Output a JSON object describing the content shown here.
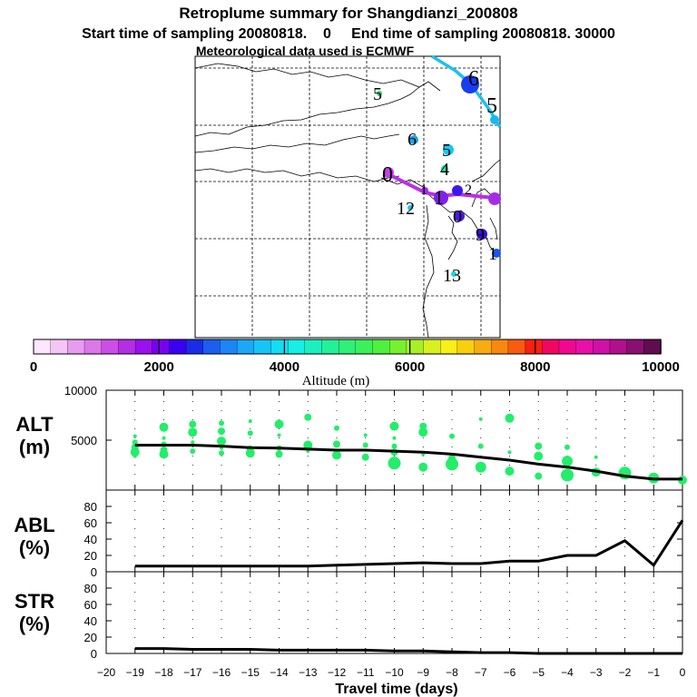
{
  "title": {
    "line1": "Retroplume summary for Shangdianzi_200808",
    "line2": "Start time of sampling 20080818.    0     End time of sampling 20080818. 30000",
    "line3": "Meteorological data used is ECMWF"
  },
  "colorbar": {
    "label": "Altitude (m)",
    "ticks": [
      "0",
      "2000",
      "4000",
      "6000",
      "8000",
      "10000"
    ],
    "colors": [
      "#ffe6ff",
      "#f4c6f8",
      "#e89cf0",
      "#dc78ea",
      "#cc4ee6",
      "#b42ee4",
      "#9a10ee",
      "#7a00f2",
      "#3a00f0",
      "#1a2ce8",
      "#1c5ef0",
      "#1c86f4",
      "#1ca8f6",
      "#18c4f6",
      "#14dcf2",
      "#16eee6",
      "#1cf0c0",
      "#24f09a",
      "#30f07a",
      "#3cf05a",
      "#50f03e",
      "#78f030",
      "#a8f028",
      "#d8f020",
      "#f8f018",
      "#f8d010",
      "#f8ac10",
      "#f88810",
      "#f85c10",
      "#f82010",
      "#f00860",
      "#f00890",
      "#e810a8",
      "#d010a8",
      "#b0108c",
      "#8a1070",
      "#600c50"
    ],
    "divider_values": [
      2000,
      4000,
      6000,
      8000
    ]
  },
  "map": {
    "labels": [
      {
        "text": "5",
        "color": "#2ad66a"
      },
      {
        "text": "6",
        "color": "#1646e0"
      },
      {
        "text": "5",
        "color": "#18b8f0"
      },
      {
        "text": "6",
        "color": "#18a8ee"
      },
      {
        "text": "5",
        "color": "#14c8f2"
      },
      {
        "text": "4",
        "color": "#24e6a0"
      },
      {
        "text": "0",
        "color": "#c840e8"
      },
      {
        "text": "1",
        "color": "#a02ce6"
      },
      {
        "text": "2",
        "color": "#3a1ae6"
      },
      {
        "text": "1",
        "color": "#8020ea"
      },
      {
        "text": "12",
        "color": "#18c8f4"
      },
      {
        "text": "0",
        "color": "#4a1ce0"
      },
      {
        "text": "9",
        "color": "#3a10d4"
      },
      {
        "text": "1",
        "color": "#1a56ee"
      },
      {
        "text": "13",
        "color": "#16d8e8"
      }
    ]
  },
  "chart_data": [
    {
      "type": "scatter",
      "panel": "ALT",
      "ylabel": "ALT\n(m)",
      "ylabel_line1": "ALT",
      "ylabel_line2": "(m)",
      "ylim": [
        0,
        10000
      ],
      "yticks": [
        "5000",
        "10000"
      ],
      "ytick_values": [
        5000,
        10000
      ],
      "xlim": [
        -20,
        0
      ],
      "point_color": "#22ee6a",
      "mean_line": {
        "x": [
          -19,
          -18,
          -17,
          -16,
          -15,
          -14,
          -13,
          -12,
          -11,
          -10,
          -9,
          -8,
          -7,
          -6,
          -5,
          -4,
          -3,
          -2,
          -1,
          0
        ],
        "y": [
          4500,
          4500,
          4500,
          4400,
          4250,
          4200,
          4100,
          4000,
          4000,
          3900,
          3800,
          3600,
          3300,
          3000,
          2600,
          2300,
          1900,
          1400,
          1100,
          1100
        ]
      },
      "points": [
        {
          "x": -19,
          "y": [
            5400,
            4800,
            4300,
            3800,
            3400
          ]
        },
        {
          "x": -18,
          "y": [
            6300,
            5200,
            4600,
            4000,
            3600
          ]
        },
        {
          "x": -17,
          "y": [
            6600,
            5800,
            4800,
            3900
          ]
        },
        {
          "x": -16,
          "y": [
            6700,
            5900,
            4900,
            4200,
            3700
          ]
        },
        {
          "x": -15,
          "y": [
            6900,
            5700,
            4100,
            3700
          ]
        },
        {
          "x": -14,
          "y": [
            6600,
            5500,
            4200,
            3600
          ]
        },
        {
          "x": -13,
          "y": [
            7300,
            4500,
            3900
          ]
        },
        {
          "x": -12,
          "y": [
            6200,
            4600,
            3500
          ]
        },
        {
          "x": -11,
          "y": [
            5500,
            4500,
            3300
          ]
        },
        {
          "x": -10,
          "y": [
            6400,
            5200,
            4400,
            3800,
            2700
          ]
        },
        {
          "x": -9,
          "y": [
            6400,
            5800,
            3600,
            2300
          ]
        },
        {
          "x": -8,
          "y": [
            5400,
            3200,
            2600
          ]
        },
        {
          "x": -7,
          "y": [
            7100,
            4400,
            2300
          ]
        },
        {
          "x": -6,
          "y": [
            7200,
            3800,
            1900
          ]
        },
        {
          "x": -5,
          "y": [
            4400,
            3400,
            1400
          ]
        },
        {
          "x": -4,
          "y": [
            4300,
            2900,
            1500
          ]
        },
        {
          "x": -3,
          "y": [
            3300,
            1800
          ]
        },
        {
          "x": -2,
          "y": [
            1700,
            1500
          ]
        },
        {
          "x": -1,
          "y": [
            1200
          ]
        },
        {
          "x": 0,
          "y": [
            1000
          ]
        }
      ]
    },
    {
      "type": "line",
      "panel": "ABL",
      "ylabel_line1": "ABL",
      "ylabel_line2": "(%)",
      "ylim": [
        0,
        100
      ],
      "yticks": [
        "0",
        "20",
        "40",
        "60",
        "80"
      ],
      "ytick_values": [
        0,
        20,
        40,
        60,
        80
      ],
      "xlim": [
        -20,
        0
      ],
      "x": [
        -19,
        -18,
        -17,
        -16,
        -15,
        -14,
        -13,
        -12,
        -11,
        -10,
        -9,
        -8,
        -7,
        -6,
        -5,
        -4,
        -3,
        -2,
        -1,
        0
      ],
      "y": [
        7,
        7,
        7,
        7,
        7,
        7,
        7,
        8,
        9,
        10,
        11,
        10,
        10,
        13,
        13,
        20,
        20,
        38,
        8,
        63
      ]
    },
    {
      "type": "line",
      "panel": "STR",
      "ylabel_line1": "STR",
      "ylabel_line2": "(%)",
      "ylim": [
        0,
        100
      ],
      "yticks": [
        "0",
        "20",
        "40",
        "60",
        "80"
      ],
      "ytick_values": [
        0,
        20,
        40,
        60,
        80
      ],
      "xlim": [
        -20,
        0
      ],
      "xlabel": "Travel time (days)",
      "xticks": [
        "−20",
        "−19",
        "−18",
        "−17",
        "−16",
        "−15",
        "−14",
        "−13",
        "−12",
        "−11",
        "−10",
        "−9",
        "−8",
        "−7",
        "−6",
        "−5",
        "−4",
        "−3",
        "−2",
        "−1",
        "0"
      ],
      "xtick_values": [
        -20,
        -19,
        -18,
        -17,
        -16,
        -15,
        -14,
        -13,
        -12,
        -11,
        -10,
        -9,
        -8,
        -7,
        -6,
        -5,
        -4,
        -3,
        -2,
        -1,
        0
      ],
      "x": [
        -19,
        -18,
        -17,
        -16,
        -15,
        -14,
        -13,
        -12,
        -11,
        -10,
        -9,
        -8,
        -7,
        -6,
        -5,
        -4,
        -3,
        -2,
        -1,
        0
      ],
      "y": [
        6,
        6,
        5,
        5,
        5,
        4,
        4,
        4,
        4,
        3,
        3,
        2,
        1,
        1,
        0,
        0,
        0,
        0,
        0,
        0
      ]
    }
  ]
}
